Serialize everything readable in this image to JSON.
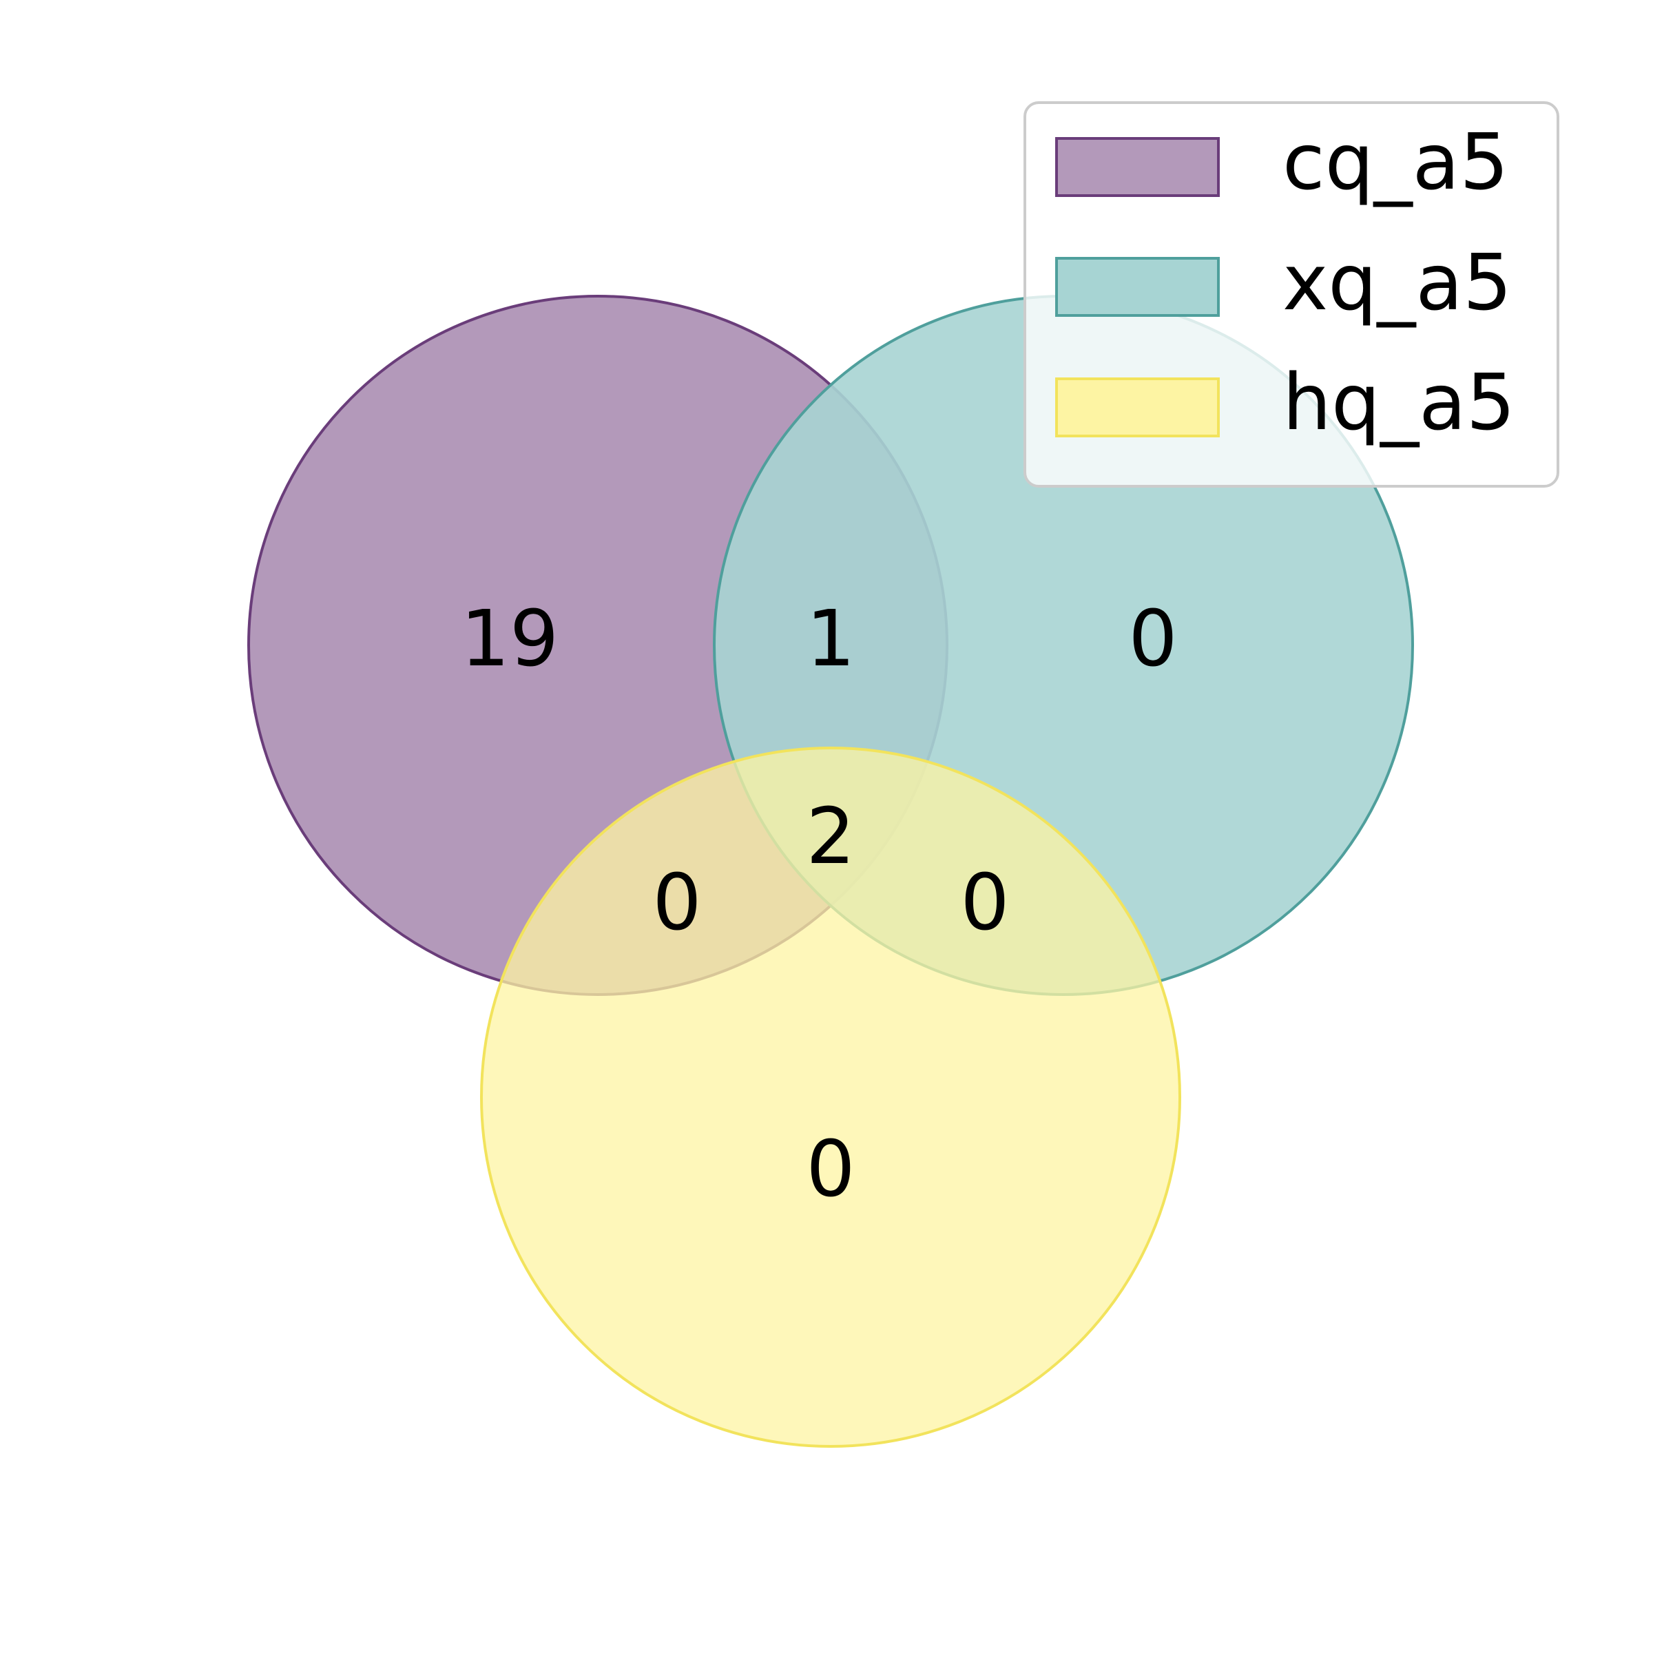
{
  "chart_data": {
    "type": "venn",
    "sets": [
      {
        "name": "cq_a5",
        "fill": "#b399ba",
        "stroke": "#6a3d7a"
      },
      {
        "name": "xq_a5",
        "fill": "#a7d4d3",
        "stroke": "#4f9f9c"
      },
      {
        "name": "hq_a5",
        "fill": "#fdf4a3",
        "stroke": "#f2e35c"
      }
    ],
    "regions": {
      "cq_a5_only": 19,
      "xq_a5_only": 0,
      "hq_a5_only": 0,
      "cq_a5_and_xq_a5_only": 1,
      "cq_a5_and_hq_a5_only": 0,
      "xq_a5_and_hq_a5_only": 0,
      "all_three": 2
    },
    "legend": {
      "placement": "top-right",
      "entries": [
        "cq_a5",
        "xq_a5",
        "hq_a5"
      ]
    }
  }
}
